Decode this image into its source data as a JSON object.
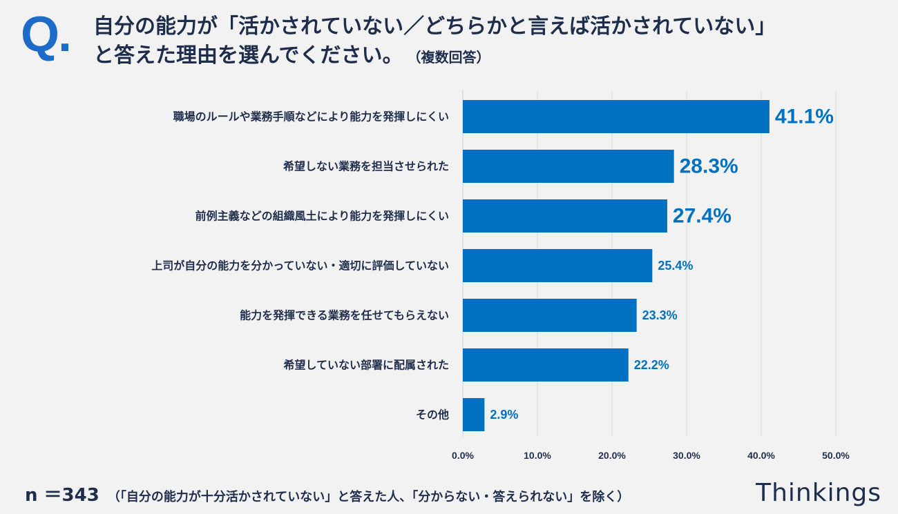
{
  "header": {
    "q_letter": "Q",
    "q_dot": ".",
    "title_line1": "自分の能力が「活かされていない／どちらかと言えば活かされていない」",
    "title_line2": "と答えた理由を選んでください。",
    "title_note": "（複数回答）"
  },
  "chart_data": {
    "type": "bar",
    "orientation": "horizontal",
    "categories": [
      "職場のルールや業務手順などにより能力を発揮しにくい",
      "希望しない業務を担当させられた",
      "前例主義などの組織風土により能力を発揮しにくい",
      "上司が自分の能力を分かっていない・適切に評価していない",
      "能力を発揮できる業務を任せてもらえない",
      "希望していない部署に配属された",
      "その他"
    ],
    "values": [
      41.1,
      28.3,
      27.4,
      25.4,
      23.3,
      22.2,
      2.9
    ],
    "value_labels": [
      "41.1%",
      "28.3%",
      "27.4%",
      "25.4%",
      "23.3%",
      "22.2%",
      "2.9%"
    ],
    "highlighted_top": 3,
    "xlim": [
      0,
      50
    ],
    "ticks": [
      0,
      10,
      20,
      30,
      40,
      50
    ],
    "tick_labels": [
      "0.0%",
      "10.0%",
      "20.0%",
      "30.0%",
      "40.0%",
      "50.0%"
    ],
    "grid": true,
    "bar_color": "#0070c0",
    "label_color": "#0070c0",
    "grid_color": "#d9d9d9"
  },
  "footer": {
    "n_label": "n ＝343",
    "condition": "（「自分の能力が十分活かされていない」と答えた人、「分からない・答えられない」を除く）"
  },
  "brand": "Thinkings"
}
